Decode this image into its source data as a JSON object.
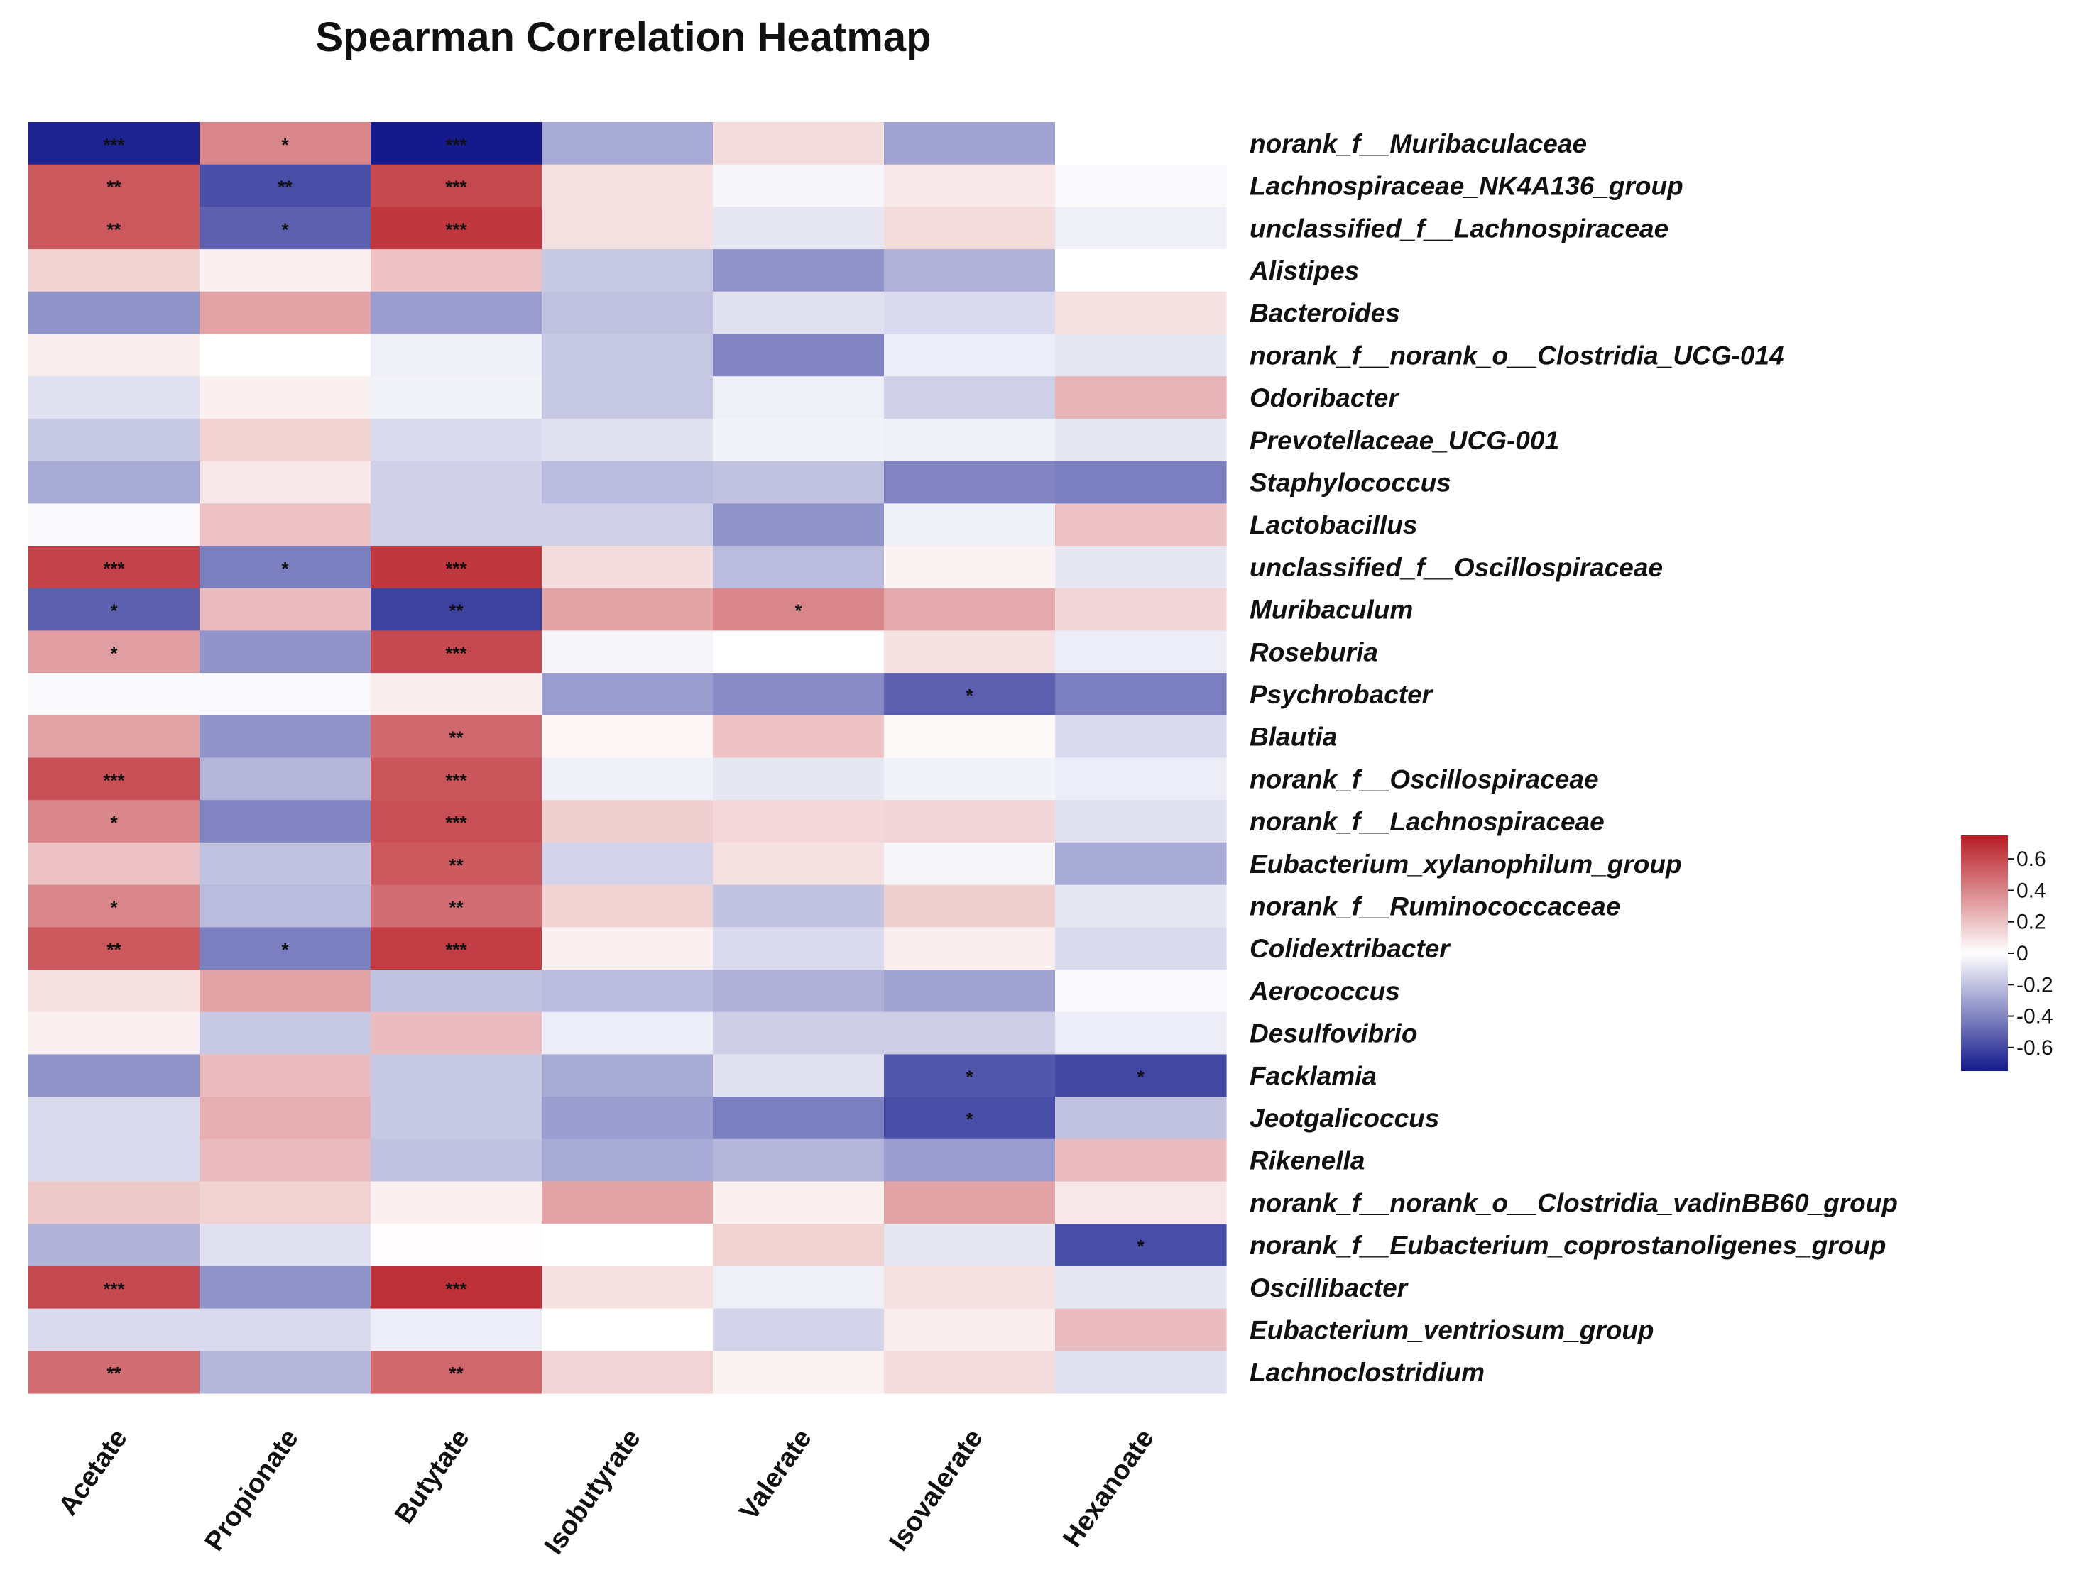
{
  "chart_data": {
    "type": "heatmap",
    "title": "Spearman Correlation Heatmap",
    "columns": [
      "Acetate",
      "Propionate",
      "Butytate",
      "Isobutyrate",
      "Valerate",
      "Isovalerate",
      "Hexanoate"
    ],
    "rows": [
      "norank_f__Muribaculaceae",
      "Lachnospiraceae_NK4A136_group",
      "unclassified_f__Lachnospiraceae",
      "Alistipes",
      "Bacteroides",
      "norank_f__norank_o__Clostridia_UCG-014",
      "Odoribacter",
      "Prevotellaceae_UCG-001",
      "Staphylococcus",
      "Lactobacillus",
      "unclassified_f__Oscillospiraceae",
      "Muribaculum",
      "Roseburia",
      "Psychrobacter",
      "Blautia",
      "norank_f__Oscillospiraceae",
      "norank_f__Lachnospiraceae",
      "Eubacterium_xylanophilum_group",
      "norank_f__Ruminococcaceae",
      "Colidextribacter",
      "Aerococcus",
      "Desulfovibrio",
      "Facklamia",
      "Jeotgalicoccus",
      "Rikenella",
      "norank_f__norank_o__Clostridia_vadinBB60_group",
      "norank_f__Eubacterium_coprostanoligenes_group",
      "Oscillibacter",
      "Eubacterium_ventriosum_group",
      "Lachnoclostridium"
    ],
    "values": [
      [
        -0.72,
        0.4,
        -0.75,
        -0.28,
        0.12,
        -0.3,
        0.0
      ],
      [
        0.55,
        -0.58,
        0.6,
        0.1,
        -0.03,
        0.08,
        -0.02
      ],
      [
        0.55,
        -0.52,
        0.66,
        0.1,
        -0.08,
        0.12,
        -0.05
      ],
      [
        0.15,
        0.05,
        0.2,
        -0.18,
        -0.35,
        -0.25,
        0.0
      ],
      [
        -0.35,
        0.3,
        -0.32,
        -0.2,
        -0.1,
        -0.12,
        0.1
      ],
      [
        0.06,
        0.0,
        -0.05,
        -0.18,
        -0.4,
        -0.06,
        -0.08
      ],
      [
        -0.1,
        0.05,
        -0.04,
        -0.18,
        -0.05,
        -0.15,
        0.25
      ],
      [
        -0.18,
        0.15,
        -0.12,
        -0.1,
        -0.04,
        -0.05,
        -0.08
      ],
      [
        -0.28,
        0.08,
        -0.15,
        -0.22,
        -0.2,
        -0.4,
        -0.42
      ],
      [
        -0.02,
        0.2,
        -0.15,
        -0.15,
        -0.35,
        -0.05,
        0.2
      ],
      [
        0.62,
        -0.42,
        0.66,
        0.12,
        -0.22,
        0.04,
        -0.08
      ],
      [
        -0.52,
        0.22,
        -0.62,
        0.3,
        0.4,
        0.28,
        0.14
      ],
      [
        0.32,
        -0.35,
        0.6,
        -0.03,
        0.0,
        0.1,
        -0.06
      ],
      [
        -0.02,
        -0.02,
        0.06,
        -0.32,
        -0.38,
        -0.52,
        -0.42
      ],
      [
        0.3,
        -0.35,
        0.5,
        0.03,
        0.2,
        0.02,
        -0.12
      ],
      [
        0.58,
        -0.24,
        0.56,
        -0.05,
        -0.08,
        -0.04,
        -0.06
      ],
      [
        0.4,
        -0.4,
        0.58,
        0.16,
        0.13,
        0.14,
        -0.1
      ],
      [
        0.2,
        -0.2,
        0.55,
        -0.14,
        0.1,
        -0.03,
        -0.28
      ],
      [
        0.4,
        -0.22,
        0.48,
        0.15,
        -0.2,
        0.16,
        -0.08
      ],
      [
        0.55,
        -0.42,
        0.64,
        0.05,
        -0.12,
        0.06,
        -0.12
      ],
      [
        0.1,
        0.3,
        -0.2,
        -0.22,
        -0.26,
        -0.3,
        -0.02
      ],
      [
        0.05,
        -0.18,
        0.22,
        -0.06,
        -0.16,
        -0.16,
        -0.06
      ],
      [
        -0.35,
        0.22,
        -0.18,
        -0.28,
        -0.1,
        -0.55,
        -0.6
      ],
      [
        -0.12,
        0.26,
        -0.18,
        -0.32,
        -0.42,
        -0.58,
        -0.2
      ],
      [
        -0.12,
        0.22,
        -0.2,
        -0.28,
        -0.24,
        -0.32,
        0.22
      ],
      [
        0.18,
        0.15,
        0.05,
        0.3,
        0.05,
        0.3,
        0.08
      ],
      [
        -0.25,
        -0.1,
        0.01,
        0.0,
        0.15,
        -0.08,
        -0.58
      ],
      [
        0.6,
        -0.35,
        0.68,
        0.1,
        -0.05,
        0.1,
        -0.08
      ],
      [
        -0.12,
        -0.12,
        -0.06,
        0.0,
        -0.14,
        0.06,
        0.22
      ],
      [
        0.48,
        -0.24,
        0.5,
        0.14,
        0.04,
        0.12,
        -0.1
      ]
    ],
    "significance": [
      [
        "***",
        "*",
        "***",
        "",
        "",
        "",
        ""
      ],
      [
        "**",
        "**",
        "***",
        "",
        "",
        "",
        ""
      ],
      [
        "**",
        "*",
        "***",
        "",
        "",
        "",
        ""
      ],
      [
        "",
        "",
        "",
        "",
        "",
        "",
        ""
      ],
      [
        "",
        "",
        "",
        "",
        "",
        "",
        ""
      ],
      [
        "",
        "",
        "",
        "",
        "",
        "",
        ""
      ],
      [
        "",
        "",
        "",
        "",
        "",
        "",
        ""
      ],
      [
        "",
        "",
        "",
        "",
        "",
        "",
        ""
      ],
      [
        "",
        "",
        "",
        "",
        "",
        "",
        ""
      ],
      [
        "",
        "",
        "",
        "",
        "",
        "",
        ""
      ],
      [
        "***",
        "*",
        "***",
        "",
        "",
        "",
        ""
      ],
      [
        "*",
        "",
        "**",
        "",
        "*",
        "",
        ""
      ],
      [
        "*",
        "",
        "***",
        "",
        "",
        "",
        ""
      ],
      [
        "",
        "",
        "",
        "",
        "",
        "*",
        ""
      ],
      [
        "",
        "",
        "**",
        "",
        "",
        "",
        ""
      ],
      [
        "***",
        "",
        "***",
        "",
        "",
        "",
        ""
      ],
      [
        "*",
        "",
        "***",
        "",
        "",
        "",
        ""
      ],
      [
        "",
        "",
        "**",
        "",
        "",
        "",
        ""
      ],
      [
        "*",
        "",
        "**",
        "",
        "",
        "",
        ""
      ],
      [
        "**",
        "*",
        "***",
        "",
        "",
        "",
        ""
      ],
      [
        "",
        "",
        "",
        "",
        "",
        "",
        ""
      ],
      [
        "",
        "",
        "",
        "",
        "",
        "",
        ""
      ],
      [
        "",
        "",
        "",
        "",
        "",
        "*",
        "*"
      ],
      [
        "",
        "",
        "",
        "",
        "",
        "*",
        ""
      ],
      [
        "",
        "",
        "",
        "",
        "",
        "",
        ""
      ],
      [
        "",
        "",
        "",
        "",
        "",
        "",
        ""
      ],
      [
        "",
        "",
        "",
        "",
        "",
        "",
        "*"
      ],
      [
        "***",
        "",
        "***",
        "",
        "",
        "",
        ""
      ],
      [
        "",
        "",
        "",
        "",
        "",
        "",
        ""
      ],
      [
        "**",
        "",
        "**",
        "",
        "",
        "",
        ""
      ]
    ],
    "color_scale": {
      "min": -0.75,
      "max": 0.75,
      "low_color": "#141A8C",
      "mid_color": "#FFFFFF",
      "high_color": "#B81C24"
    },
    "legend": {
      "placement": "right",
      "ticks": [
        0.6,
        0.4,
        0.2,
        0,
        -0.2,
        -0.4,
        -0.6
      ],
      "tick_labels": [
        "0.6",
        "0.4",
        "0.2",
        "0",
        "-0.2",
        "-0.4",
        "-0.6"
      ]
    }
  }
}
